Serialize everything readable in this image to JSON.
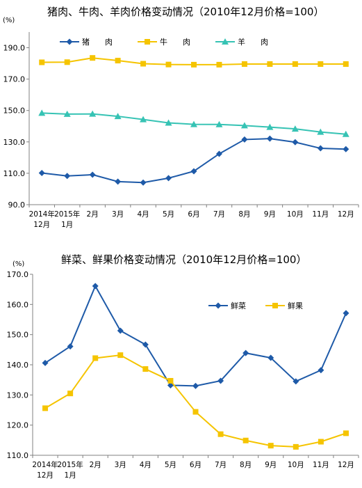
{
  "chart_data": [
    {
      "type": "line",
      "title": "猪肉、牛肉、羊肉价格变动情况（2010年12月价格=100）",
      "ylabel": "(%)",
      "ylim": [
        90,
        200
      ],
      "yticks": [
        "90.0",
        "110.0",
        "130.0",
        "150.0",
        "170.0",
        "190.0"
      ],
      "categories": [
        [
          "2014年",
          "12月"
        ],
        [
          "2015年",
          "1月"
        ],
        [
          "2月"
        ],
        [
          "3月"
        ],
        [
          "4月"
        ],
        [
          "5月"
        ],
        [
          "6月"
        ],
        [
          "7月"
        ],
        [
          "8月"
        ],
        [
          "9月"
        ],
        [
          "10月"
        ],
        [
          "11月"
        ],
        [
          "12月"
        ]
      ],
      "legend_position": "top",
      "grid": false,
      "series": [
        {
          "name": "猪　　肉",
          "color": "#1e5aa8",
          "marker": "diamond",
          "values": [
            110.2,
            108.3,
            109.1,
            104.7,
            104.1,
            106.9,
            111.3,
            122.4,
            131.5,
            132.1,
            129.8,
            125.9,
            125.4
          ]
        },
        {
          "name": "牛　　肉",
          "color": "#f5c400",
          "marker": "square",
          "values": [
            180.7,
            180.8,
            183.5,
            181.8,
            179.8,
            179.3,
            179.2,
            179.2,
            179.6,
            179.6,
            179.6,
            179.6,
            179.6
          ]
        },
        {
          "name": "羊　　肉",
          "color": "#36c3b4",
          "marker": "triangle",
          "values": [
            148.4,
            147.7,
            147.8,
            146.3,
            144.3,
            142.1,
            141.2,
            141.1,
            140.4,
            139.4,
            138.3,
            136.3,
            134.9
          ]
        }
      ]
    },
    {
      "type": "line",
      "title": "鲜菜、鲜果价格变动情况（2010年12月价格=100）",
      "ylabel": "(%)",
      "ylim": [
        110,
        170
      ],
      "yticks": [
        "110.0",
        "120.0",
        "130.0",
        "140.0",
        "150.0",
        "160.0",
        "170.0"
      ],
      "categories": [
        [
          "2014年",
          "12月"
        ],
        [
          "2015年",
          "1月"
        ],
        [
          "2月"
        ],
        [
          "3月"
        ],
        [
          "4月"
        ],
        [
          "5月"
        ],
        [
          "6月"
        ],
        [
          "7月"
        ],
        [
          "8月"
        ],
        [
          "9月"
        ],
        [
          "10月"
        ],
        [
          "11月"
        ],
        [
          "12月"
        ]
      ],
      "legend_position": "top-right",
      "grid": false,
      "series": [
        {
          "name": "鲜菜",
          "color": "#1e5aa8",
          "marker": "diamond",
          "values": [
            140.6,
            146.1,
            166.1,
            151.3,
            146.7,
            133.2,
            133.0,
            134.7,
            143.9,
            142.3,
            134.5,
            138.2,
            157.1
          ]
        },
        {
          "name": "鲜果",
          "color": "#f5c400",
          "marker": "square",
          "values": [
            125.6,
            130.5,
            142.2,
            143.2,
            138.6,
            134.7,
            124.4,
            117.0,
            114.9,
            113.2,
            112.8,
            114.5,
            117.3
          ]
        }
      ]
    }
  ]
}
